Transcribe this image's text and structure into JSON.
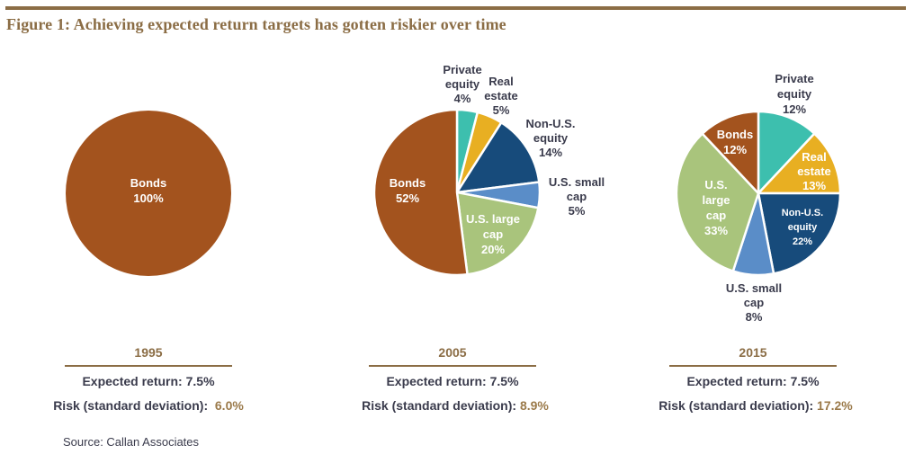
{
  "title": "Figure 1: Achieving expected return targets has gotten riskier over time",
  "source": "Source: Callan Associates",
  "colors": {
    "Bonds": "#A3531E",
    "Private equity": "#3DBFAE",
    "Real estate": "#E8AF22",
    "Non-U.S. equity": "#174B7B",
    "U.S. small cap": "#5A8DC8",
    "U.S. large cap": "#A9C47C",
    "accent": "#8B6D45",
    "text": "#3A3B4C"
  },
  "chart_data": [
    {
      "type": "pie",
      "title": "1995",
      "start": "top",
      "direction": "clockwise",
      "slices": [
        {
          "name": "Bonds",
          "value": 100,
          "label_lines": [
            "Bonds",
            "100%"
          ],
          "label_inside": true
        }
      ],
      "expected_return_label": "Expected return:",
      "expected_return": "7.5%",
      "risk_label": "Risk (standard deviation):",
      "risk": "6.0%"
    },
    {
      "type": "pie",
      "title": "2005",
      "start": "top",
      "direction": "clockwise",
      "slices": [
        {
          "name": "Private equity",
          "value": 4,
          "label_lines": [
            "Private",
            "equity",
            "4%"
          ],
          "label_inside": false
        },
        {
          "name": "Real estate",
          "value": 5,
          "label_lines": [
            "Real",
            "estate",
            "5%"
          ],
          "label_inside": false
        },
        {
          "name": "Non-U.S. equity",
          "value": 14,
          "label_lines": [
            "Non-U.S.",
            "equity",
            "14%"
          ],
          "label_inside": false
        },
        {
          "name": "U.S. small cap",
          "value": 5,
          "label_lines": [
            "U.S. small",
            "cap",
            "5%"
          ],
          "label_inside": false
        },
        {
          "name": "U.S. large cap",
          "value": 20,
          "label_lines": [
            "U.S. large",
            "cap",
            "20%"
          ],
          "label_inside": true
        },
        {
          "name": "Bonds",
          "value": 52,
          "label_lines": [
            "Bonds",
            "52%"
          ],
          "label_inside": true
        }
      ],
      "expected_return_label": "Expected return:",
      "expected_return": "7.5%",
      "risk_label": "Risk (standard deviation):",
      "risk": "8.9%"
    },
    {
      "type": "pie",
      "title": "2015",
      "start": "top",
      "direction": "clockwise",
      "slices": [
        {
          "name": "Private equity",
          "value": 12,
          "label_lines": [
            "Private",
            "equity",
            "12%"
          ],
          "label_inside": false
        },
        {
          "name": "Real estate",
          "value": 13,
          "label_lines": [
            "Real",
            "estate",
            "13%"
          ],
          "label_inside": true
        },
        {
          "name": "Non-U.S. equity",
          "value": 22,
          "label_lines": [
            "Non-U.S.",
            "equity",
            "22%"
          ],
          "label_inside": true
        },
        {
          "name": "U.S. small cap",
          "value": 8,
          "label_lines": [
            "U.S. small",
            "cap",
            "8%"
          ],
          "label_inside": false
        },
        {
          "name": "U.S. large cap",
          "value": 33,
          "label_lines": [
            "U.S.",
            "large",
            "cap",
            "33%"
          ],
          "label_inside": true
        },
        {
          "name": "Bonds",
          "value": 12,
          "label_lines": [
            "Bonds",
            "12%"
          ],
          "label_inside": true
        }
      ],
      "expected_return_label": "Expected return:",
      "expected_return": "7.5%",
      "risk_label": "Risk (standard deviation):",
      "risk": "17.2%"
    }
  ]
}
